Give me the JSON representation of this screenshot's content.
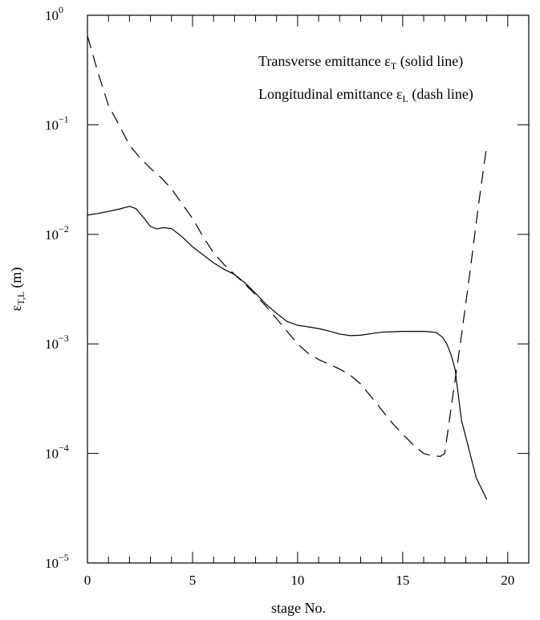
{
  "chart_data": {
    "type": "line",
    "title": "",
    "xlabel": "stage No.",
    "ylabel": {
      "symbol": "ε",
      "subscript": "T,L",
      "unit": "(m)"
    },
    "xlim": [
      0,
      21
    ],
    "ylim": [
      1e-05,
      1
    ],
    "yscale": "log",
    "grid": false,
    "legend_position": "top-right",
    "x_ticks": [
      0,
      5,
      10,
      15,
      20
    ],
    "x_tick_labels": [
      "0",
      "5",
      "10",
      "15",
      "20"
    ],
    "y_ticks": [
      {
        "value": 1e-05,
        "base": "10",
        "exp": "−5"
      },
      {
        "value": 0.0001,
        "base": "10",
        "exp": "−4"
      },
      {
        "value": 0.001,
        "base": "10",
        "exp": "−3"
      },
      {
        "value": 0.01,
        "base": "10",
        "exp": "−2"
      },
      {
        "value": 0.1,
        "base": "10",
        "exp": "−1"
      },
      {
        "value": 1,
        "base": "10",
        "exp": "0"
      }
    ],
    "legend": [
      {
        "prefix": "Transverse emittance ",
        "symbol": "ε",
        "sub": "T",
        "suffix": " (solid line)",
        "style": "solid"
      },
      {
        "prefix": "Longitudinal emittance ",
        "symbol": "ε",
        "sub": "L",
        "suffix": " (dash line)",
        "style": "dashed"
      }
    ],
    "series": [
      {
        "style": "solid",
        "color": "#000000",
        "x": [
          0,
          0.5,
          1,
          1.5,
          2,
          2.3,
          2.7,
          3.0,
          3.3,
          3.6,
          4.0,
          4.5,
          5.0,
          5.5,
          6.0,
          6.5,
          7.0,
          7.5,
          8.0,
          8.5,
          9.0,
          9.5,
          10.0,
          10.5,
          11.0,
          11.5,
          12.0,
          12.5,
          13.0,
          13.5,
          14.0,
          14.5,
          15.0,
          15.5,
          16.0,
          16.3,
          16.6,
          16.9,
          17.1,
          17.3,
          17.5,
          17.6,
          17.8,
          18.1,
          18.5,
          19.0
        ],
        "y": [
          0.015,
          0.0155,
          0.0162,
          0.017,
          0.018,
          0.0172,
          0.014,
          0.0118,
          0.0112,
          0.0115,
          0.0113,
          0.0095,
          0.0077,
          0.0065,
          0.0055,
          0.0048,
          0.0043,
          0.0036,
          0.0029,
          0.0023,
          0.0019,
          0.0016,
          0.00148,
          0.00143,
          0.00138,
          0.00131,
          0.00123,
          0.00119,
          0.0012,
          0.00124,
          0.00128,
          0.00129,
          0.0013,
          0.0013,
          0.0013,
          0.00129,
          0.00127,
          0.00115,
          0.001,
          0.0008,
          0.00058,
          0.0004,
          0.0002,
          0.00012,
          6e-05,
          3.8e-05
        ]
      },
      {
        "style": "dashed",
        "color": "#000000",
        "x": [
          0,
          0.5,
          1.0,
          1.5,
          2.0,
          2.5,
          3.0,
          3.5,
          4.0,
          4.5,
          5.0,
          5.5,
          6.0,
          6.5,
          7.0,
          7.5,
          8.0,
          8.5,
          9.0,
          9.5,
          10.0,
          10.5,
          11.0,
          11.5,
          12.0,
          12.5,
          13.0,
          13.5,
          14.0,
          14.5,
          15.0,
          15.5,
          16.0,
          16.4,
          16.8,
          17.0,
          17.4,
          17.8,
          18.2,
          18.6,
          19.0
        ],
        "y": [
          0.65,
          0.3,
          0.15,
          0.1,
          0.065,
          0.05,
          0.04,
          0.033,
          0.026,
          0.019,
          0.014,
          0.0095,
          0.0068,
          0.0053,
          0.0043,
          0.0035,
          0.0028,
          0.0022,
          0.0017,
          0.0013,
          0.001,
          0.00082,
          0.00072,
          0.00065,
          0.00059,
          0.00052,
          0.00043,
          0.00033,
          0.00025,
          0.00019,
          0.00015,
          0.00012,
          0.0001,
          9.5e-05,
          9.4e-05,
          0.0001,
          0.00035,
          0.0012,
          0.0045,
          0.018,
          0.065
        ]
      }
    ]
  }
}
